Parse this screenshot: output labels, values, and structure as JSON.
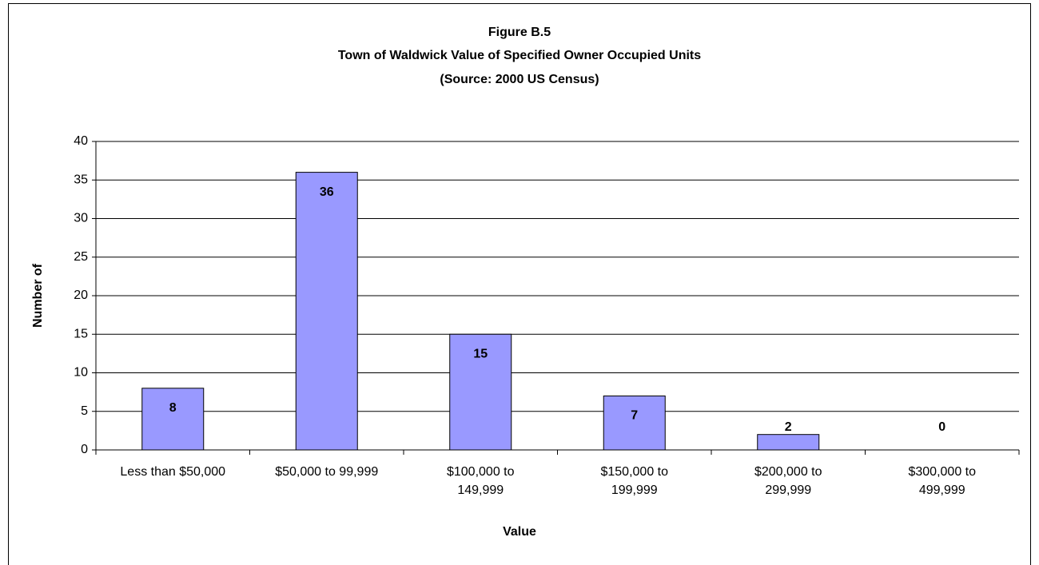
{
  "chart_data": {
    "type": "bar",
    "title": "Figure B.5",
    "subtitle": "Town of Waldwick Value of Specified Owner Occupied Units",
    "source": "(Source:  2000 US Census)",
    "x_label": "Value",
    "y_label": "Number of",
    "categories": [
      "Less than $50,000",
      "$50,000 to 99,999",
      "$100,000 to\n149,999",
      "$150,000 to\n199,999",
      "$200,000 to\n299,999",
      "$300,000 to\n499,999"
    ],
    "values": [
      8,
      36,
      15,
      7,
      2,
      0
    ],
    "color": "#9999ff",
    "ylim": [
      0,
      40
    ],
    "yticks": [
      0,
      5,
      10,
      15,
      20,
      25,
      30,
      35,
      40
    ],
    "grid": true
  }
}
